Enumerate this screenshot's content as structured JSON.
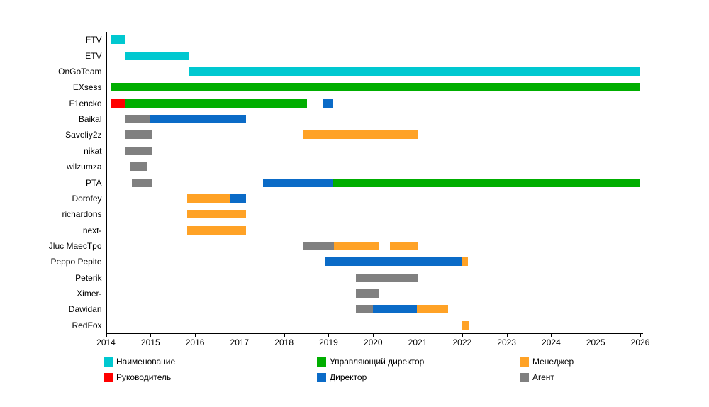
{
  "chart_data": {
    "type": "bar",
    "subtype": "gantt",
    "title": "",
    "xlabel": "",
    "ylabel": "",
    "grid": false,
    "legend_position": "bottom",
    "background_color": "#FFFFFF",
    "axis_color": "#000000",
    "x_range": [
      2014,
      2026
    ],
    "x_ticks": [
      "2014",
      "2015",
      "2016",
      "2017",
      "2018",
      "2019",
      "2020",
      "2021",
      "2022",
      "2023",
      "2024",
      "2025",
      "2026"
    ],
    "roles": {
      "name": {
        "label": "Наименование",
        "color": "#00C8D0"
      },
      "head": {
        "label": "Руководитель",
        "color": "#FF0000"
      },
      "md": {
        "label": "Управляющий директор",
        "color": "#00AE00"
      },
      "director": {
        "label": "Директор",
        "color": "#0B6BC7"
      },
      "manager": {
        "label": "Менеджер",
        "color": "#FFA226"
      },
      "agent": {
        "label": "Агент",
        "color": "#808080"
      }
    },
    "legend_columns": [
      [
        "name",
        "head"
      ],
      [
        "md",
        "director"
      ],
      [
        "manager",
        "agent"
      ]
    ],
    "rows": [
      {
        "label": "FTV",
        "segments": [
          {
            "role": "name",
            "start": 2014.1,
            "end": 2014.44
          }
        ]
      },
      {
        "label": "ETV",
        "segments": [
          {
            "role": "name",
            "start": 2014.42,
            "end": 2015.86
          }
        ]
      },
      {
        "label": "OnGoTeam",
        "segments": [
          {
            "role": "name",
            "start": 2015.85,
            "end": 2026.0
          }
        ]
      },
      {
        "label": "EXsess",
        "segments": [
          {
            "role": "md",
            "start": 2014.12,
            "end": 2026.0
          }
        ]
      },
      {
        "label": "F1encko",
        "segments": [
          {
            "role": "head",
            "start": 2014.12,
            "end": 2014.42
          },
          {
            "role": "md",
            "start": 2014.42,
            "end": 2018.51
          },
          {
            "role": "director",
            "start": 2018.86,
            "end": 2019.1
          }
        ]
      },
      {
        "label": "Baikal",
        "segments": [
          {
            "role": "agent",
            "start": 2014.44,
            "end": 2015.0
          },
          {
            "role": "director",
            "start": 2015.0,
            "end": 2017.15
          }
        ]
      },
      {
        "label": "Saveliy2z",
        "segments": [
          {
            "role": "agent",
            "start": 2014.42,
            "end": 2015.02
          },
          {
            "role": "manager",
            "start": 2018.42,
            "end": 2021.01
          }
        ]
      },
      {
        "label": "nikat",
        "segments": [
          {
            "role": "agent",
            "start": 2014.42,
            "end": 2015.02
          }
        ]
      },
      {
        "label": "wilzumza",
        "segments": [
          {
            "role": "agent",
            "start": 2014.54,
            "end": 2014.92
          }
        ]
      },
      {
        "label": "PTA",
        "segments": [
          {
            "role": "agent",
            "start": 2014.58,
            "end": 2015.04
          },
          {
            "role": "director",
            "start": 2017.53,
            "end": 2019.1
          },
          {
            "role": "md",
            "start": 2019.1,
            "end": 2026.0
          }
        ]
      },
      {
        "label": "Dorofey",
        "segments": [
          {
            "role": "manager",
            "start": 2015.83,
            "end": 2016.78
          },
          {
            "role": "director",
            "start": 2016.78,
            "end": 2017.15
          }
        ]
      },
      {
        "label": "richardons",
        "segments": [
          {
            "role": "manager",
            "start": 2015.83,
            "end": 2017.15
          }
        ]
      },
      {
        "label": "next-",
        "segments": [
          {
            "role": "manager",
            "start": 2015.83,
            "end": 2017.15
          }
        ]
      },
      {
        "label": "Jluc MaecTpo",
        "segments": [
          {
            "role": "agent",
            "start": 2018.42,
            "end": 2019.12
          },
          {
            "role": "manager",
            "start": 2019.12,
            "end": 2020.13
          },
          {
            "role": "manager",
            "start": 2020.38,
            "end": 2021.01
          }
        ]
      },
      {
        "label": "Peppo Pepite",
        "segments": [
          {
            "role": "director",
            "start": 2018.91,
            "end": 2021.99
          },
          {
            "role": "manager",
            "start": 2021.99,
            "end": 2022.13
          }
        ]
      },
      {
        "label": "Peterik",
        "segments": [
          {
            "role": "agent",
            "start": 2019.62,
            "end": 2021.01
          }
        ]
      },
      {
        "label": "Ximer-",
        "segments": [
          {
            "role": "agent",
            "start": 2019.62,
            "end": 2020.13
          }
        ]
      },
      {
        "label": "Dawidan",
        "segments": [
          {
            "role": "agent",
            "start": 2019.62,
            "end": 2019.99
          },
          {
            "role": "director",
            "start": 2019.99,
            "end": 2020.99
          },
          {
            "role": "manager",
            "start": 2020.99,
            "end": 2021.68
          }
        ]
      },
      {
        "label": "RedFox",
        "segments": [
          {
            "role": "manager",
            "start": 2022.0,
            "end": 2022.14
          }
        ]
      }
    ]
  }
}
